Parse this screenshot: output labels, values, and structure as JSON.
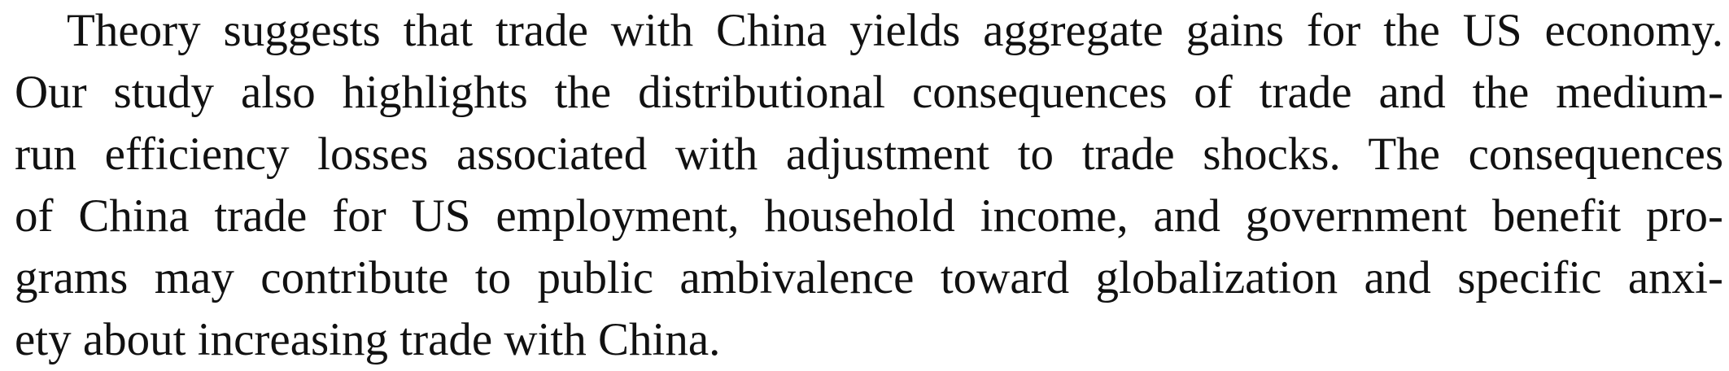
{
  "paragraph": {
    "lines": [
      "Theory suggests that trade with China yields aggregate gains for the US economy.",
      "Our study also highlights the distributional consequences of trade and the medium-",
      "run efficiency losses associated with adjustment to trade shocks. The consequences",
      "of China trade for US employment, household income, and government benefit pro-",
      "grams may contribute to public ambivalence toward globalization and specific anxi-",
      "ety about increasing trade with China."
    ]
  }
}
